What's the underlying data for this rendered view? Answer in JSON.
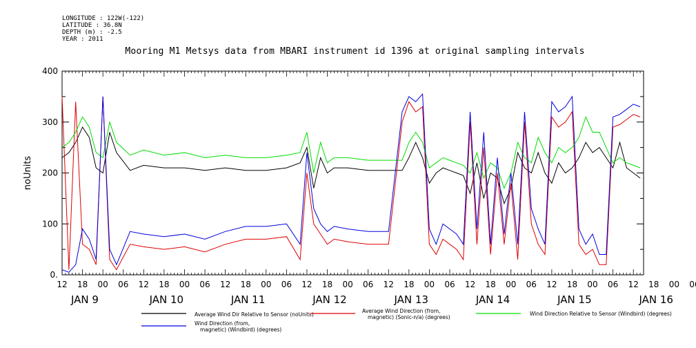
{
  "header": {
    "meta_lines": [
      "LONGITUDE : 122W(-122)",
      "LATITUDE : 36.8N",
      "DEPTH (m) : -2.5",
      "YEAR : 2011"
    ]
  },
  "chart_data": {
    "type": "line",
    "title": "Mooring M1 Metsys data from MBARI instrument id 1396 at original sampling intervals",
    "xlabel": "",
    "ylabel": "noUnits",
    "ylim": [
      0,
      400
    ],
    "yticks": [
      0,
      100,
      200,
      300,
      400
    ],
    "ytick_labels": [
      "0.",
      "100",
      "200",
      "300",
      "400"
    ],
    "xlim_hours": [
      0,
      171
    ],
    "x_hour_ticks": [
      "12",
      "18",
      "00",
      "06",
      "12",
      "18",
      "00",
      "06",
      "12",
      "18",
      "00",
      "06",
      "12",
      "18",
      "00",
      "06",
      "12",
      "18",
      "00",
      "06",
      "12",
      "18",
      "00",
      "06",
      "12",
      "18",
      "00",
      "06",
      "12",
      "18",
      "00",
      "06"
    ],
    "x_day_labels": [
      "JAN  9",
      "JAN 10",
      "JAN 11",
      "JAN 12",
      "JAN 13",
      "JAN 14",
      "JAN 15",
      "JAN 16"
    ],
    "grid": false,
    "series": [
      {
        "name": "Average Wind Dir Relative to Sensor (noUnits)",
        "color": "#000000",
        "x": [
          0,
          2,
          4,
          6,
          8,
          10,
          12,
          14,
          16,
          20,
          24,
          30,
          36,
          42,
          48,
          54,
          60,
          66,
          70,
          72,
          74,
          76,
          78,
          80,
          84,
          90,
          96,
          100,
          102,
          104,
          106,
          108,
          110,
          112,
          114,
          116,
          118,
          120,
          122,
          124,
          126,
          128,
          130,
          132,
          134,
          136,
          138,
          140,
          142,
          144,
          146,
          148,
          150,
          152,
          154,
          156,
          158,
          160,
          162,
          164,
          166,
          168,
          170
        ],
        "y": [
          230,
          240,
          260,
          290,
          270,
          210,
          200,
          280,
          240,
          205,
          215,
          210,
          210,
          205,
          210,
          205,
          205,
          210,
          220,
          250,
          170,
          230,
          200,
          210,
          210,
          205,
          205,
          205,
          230,
          260,
          230,
          180,
          200,
          210,
          205,
          200,
          195,
          160,
          220,
          150,
          200,
          190,
          140,
          170,
          240,
          210,
          200,
          240,
          200,
          180,
          220,
          200,
          210,
          230,
          260,
          240,
          250,
          230,
          210,
          260,
          210,
          200,
          190
        ]
      },
      {
        "name": "Average Wind Direction (from, magnetic) (Sonic-n/a) (degrees)",
        "color": "#dd0000",
        "x": [
          0,
          2,
          4,
          6,
          8,
          10,
          12,
          14,
          16,
          20,
          24,
          30,
          36,
          42,
          48,
          54,
          60,
          66,
          70,
          72,
          74,
          76,
          78,
          80,
          84,
          90,
          96,
          100,
          102,
          104,
          106,
          108,
          110,
          112,
          114,
          116,
          118,
          120,
          122,
          124,
          126,
          128,
          130,
          132,
          134,
          136,
          138,
          140,
          142,
          144,
          146,
          148,
          150,
          152,
          154,
          156,
          158,
          160,
          162,
          164,
          166,
          168,
          170
        ],
        "y": [
          350,
          10,
          340,
          60,
          50,
          20,
          350,
          30,
          10,
          60,
          55,
          50,
          55,
          45,
          60,
          70,
          70,
          75,
          30,
          200,
          100,
          80,
          60,
          70,
          65,
          60,
          60,
          300,
          340,
          320,
          330,
          60,
          40,
          70,
          60,
          50,
          30,
          300,
          60,
          250,
          40,
          200,
          60,
          180,
          30,
          300,
          100,
          60,
          40,
          310,
          290,
          300,
          320,
          60,
          40,
          50,
          20,
          20,
          290,
          295,
          305,
          315,
          310
        ]
      },
      {
        "name": "Wind Direction Relative to Sensor (Windbird) (degrees)",
        "color": "#00dd00",
        "x": [
          0,
          2,
          4,
          6,
          8,
          10,
          12,
          14,
          16,
          20,
          24,
          30,
          36,
          42,
          48,
          54,
          60,
          66,
          70,
          72,
          74,
          76,
          78,
          80,
          84,
          90,
          96,
          100,
          102,
          104,
          106,
          108,
          110,
          112,
          114,
          116,
          118,
          120,
          122,
          124,
          126,
          128,
          130,
          132,
          134,
          136,
          138,
          140,
          142,
          144,
          146,
          148,
          150,
          152,
          154,
          156,
          158,
          160,
          162,
          164,
          166,
          168,
          170
        ],
        "y": [
          250,
          260,
          280,
          310,
          290,
          240,
          230,
          300,
          260,
          235,
          245,
          235,
          240,
          230,
          235,
          230,
          230,
          235,
          240,
          280,
          200,
          260,
          220,
          230,
          230,
          225,
          225,
          225,
          260,
          280,
          260,
          210,
          220,
          230,
          225,
          220,
          215,
          200,
          240,
          190,
          220,
          210,
          170,
          200,
          260,
          230,
          220,
          270,
          240,
          220,
          250,
          240,
          250,
          270,
          310,
          280,
          280,
          250,
          220,
          230,
          220,
          215,
          210
        ]
      },
      {
        "name": "Wind Direction (from, magnetic) (Windbird) (degrees)",
        "color": "#0000dd",
        "x": [
          0,
          2,
          4,
          6,
          8,
          10,
          12,
          14,
          16,
          20,
          24,
          30,
          36,
          42,
          48,
          54,
          60,
          66,
          70,
          72,
          74,
          76,
          78,
          80,
          84,
          90,
          96,
          100,
          102,
          104,
          106,
          108,
          110,
          112,
          114,
          116,
          118,
          120,
          122,
          124,
          126,
          128,
          130,
          132,
          134,
          136,
          138,
          140,
          142,
          144,
          146,
          148,
          150,
          152,
          154,
          156,
          158,
          160,
          162,
          164,
          166,
          168,
          170
        ],
        "y": [
          10,
          5,
          20,
          90,
          70,
          30,
          350,
          50,
          20,
          85,
          80,
          75,
          80,
          70,
          85,
          95,
          95,
          100,
          60,
          240,
          130,
          100,
          85,
          95,
          90,
          85,
          85,
          320,
          350,
          340,
          355,
          90,
          60,
          100,
          90,
          80,
          60,
          320,
          90,
          280,
          60,
          230,
          80,
          200,
          60,
          320,
          130,
          90,
          60,
          340,
          320,
          330,
          350,
          90,
          60,
          80,
          40,
          40,
          310,
          315,
          325,
          335,
          330
        ]
      }
    ],
    "legend": {
      "placement": "bottom",
      "entries": [
        {
          "label_lines": [
            "Average Wind Dir Relative to Sensor (noUnits)"
          ],
          "color": "#000000"
        },
        {
          "label_lines": [
            "Average Wind Direction (from,",
            "magnetic) (Sonic-n/a) (degrees)"
          ],
          "color": "#dd0000"
        },
        {
          "label_lines": [
            "Wind Direction Relative to Sensor (Windbird) (degrees)"
          ],
          "color": "#00dd00"
        },
        {
          "label_lines": [
            "Wind Direction (from,",
            "magnetic) (Windbird) (degrees)"
          ],
          "color": "#0000dd"
        }
      ]
    }
  }
}
